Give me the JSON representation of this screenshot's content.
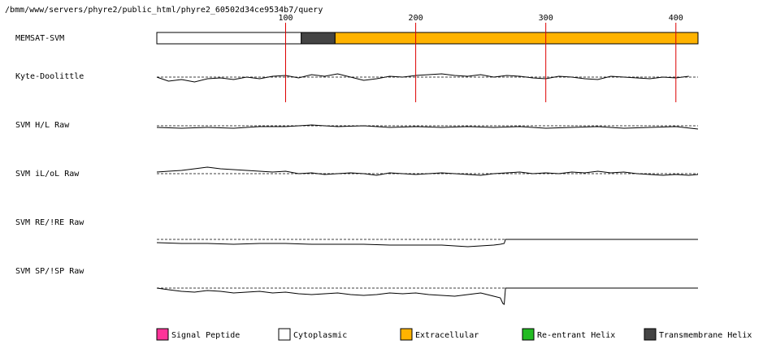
{
  "header_path": "/bmm/www/servers/phyre2/public_html/phyre2_60502d34ce9534b7/query",
  "chart_data": {
    "type": "line",
    "title": "",
    "x_ticks": [
      100,
      200,
      300,
      400
    ],
    "sequence_length": 417,
    "tracks": [
      {
        "name": "MEMSAT-SVM",
        "kind": "topology"
      },
      {
        "name": "Kyte-Doolittle",
        "kind": "profile"
      },
      {
        "name": "SVM H/L Raw",
        "kind": "profile"
      },
      {
        "name": "SVM iL/oL Raw",
        "kind": "profile"
      },
      {
        "name": "SVM RE/!RE Raw",
        "kind": "profile"
      },
      {
        "name": "SVM SP/!SP Raw",
        "kind": "profile"
      }
    ],
    "topology_segments": [
      {
        "type": "Cytoplasmic",
        "start": 1,
        "end": 112
      },
      {
        "type": "Transmembrane Helix",
        "start": 112,
        "end": 138
      },
      {
        "type": "Extracellular",
        "start": 138,
        "end": 417
      }
    ],
    "profiles": {
      "kyte_doolittle": {
        "x": [
          1,
          10,
          20,
          30,
          40,
          50,
          60,
          70,
          80,
          90,
          100,
          110,
          120,
          130,
          140,
          150,
          160,
          170,
          180,
          190,
          200,
          210,
          220,
          230,
          240,
          250,
          260,
          270,
          280,
          290,
          300,
          310,
          320,
          330,
          340,
          350,
          360,
          370,
          380,
          390,
          400,
          410
        ],
        "y": [
          0.0,
          -0.5,
          -0.3,
          -0.6,
          -0.2,
          -0.1,
          -0.3,
          0.0,
          -0.2,
          0.1,
          0.2,
          -0.1,
          0.3,
          0.1,
          0.4,
          0.0,
          -0.4,
          -0.2,
          0.1,
          0.0,
          0.2,
          0.3,
          0.4,
          0.2,
          0.1,
          0.3,
          0.0,
          0.2,
          0.1,
          -0.1,
          -0.2,
          0.1,
          0.0,
          -0.2,
          -0.3,
          0.1,
          0.0,
          -0.1,
          -0.2,
          0.0,
          -0.1,
          0.1
        ]
      },
      "svm_hl": {
        "x": [
          1,
          20,
          40,
          60,
          80,
          100,
          120,
          140,
          160,
          180,
          200,
          220,
          240,
          260,
          280,
          300,
          320,
          340,
          360,
          380,
          400,
          417
        ],
        "y": [
          -0.2,
          -0.3,
          -0.2,
          -0.3,
          -0.1,
          -0.1,
          0.1,
          -0.1,
          0.0,
          -0.2,
          -0.1,
          -0.2,
          -0.1,
          -0.2,
          -0.1,
          -0.3,
          -0.2,
          -0.1,
          -0.3,
          -0.2,
          -0.1,
          -0.4
        ]
      },
      "svm_il_ol": {
        "x": [
          1,
          10,
          20,
          30,
          40,
          50,
          60,
          70,
          80,
          90,
          100,
          110,
          120,
          130,
          140,
          150,
          160,
          170,
          180,
          190,
          200,
          210,
          220,
          230,
          240,
          250,
          260,
          270,
          280,
          290,
          300,
          310,
          320,
          330,
          340,
          350,
          360,
          370,
          380,
          390,
          400,
          410,
          417
        ],
        "y": [
          0.2,
          0.3,
          0.4,
          0.6,
          0.8,
          0.6,
          0.5,
          0.4,
          0.3,
          0.2,
          0.3,
          0.0,
          0.1,
          -0.1,
          0.0,
          0.1,
          0.0,
          -0.2,
          0.1,
          0.0,
          -0.1,
          0.0,
          0.1,
          0.0,
          -0.1,
          -0.2,
          0.0,
          0.1,
          0.2,
          0.0,
          0.1,
          0.0,
          0.2,
          0.1,
          0.3,
          0.1,
          0.2,
          0.0,
          -0.1,
          -0.2,
          -0.1,
          -0.2,
          -0.1
        ]
      },
      "svm_re": {
        "x": [
          1,
          20,
          40,
          60,
          80,
          100,
          120,
          140,
          160,
          180,
          200,
          220,
          240,
          250,
          260,
          265,
          268,
          269,
          417
        ],
        "y": [
          -0.4,
          -0.5,
          -0.5,
          -0.6,
          -0.5,
          -0.5,
          -0.6,
          -0.6,
          -0.6,
          -0.7,
          -0.7,
          -0.7,
          -0.9,
          -0.8,
          -0.7,
          -0.6,
          -0.5,
          0.0,
          0.0
        ]
      },
      "svm_sp": {
        "x": [
          1,
          10,
          20,
          30,
          40,
          50,
          60,
          70,
          80,
          90,
          100,
          110,
          120,
          130,
          140,
          150,
          160,
          170,
          180,
          190,
          200,
          210,
          220,
          230,
          240,
          250,
          255,
          260,
          265,
          267,
          268,
          269,
          417
        ],
        "y": [
          0.0,
          -0.2,
          -0.4,
          -0.5,
          -0.3,
          -0.4,
          -0.6,
          -0.5,
          -0.4,
          -0.6,
          -0.5,
          -0.7,
          -0.8,
          -0.7,
          -0.6,
          -0.8,
          -0.9,
          -0.8,
          -0.6,
          -0.7,
          -0.6,
          -0.8,
          -0.9,
          -1.0,
          -0.8,
          -0.6,
          -0.8,
          -1.0,
          -1.2,
          -1.9,
          -2.0,
          0.0,
          0.0
        ]
      }
    }
  },
  "legend": [
    {
      "label": "Signal Peptide",
      "color": "#ff3399"
    },
    {
      "label": "Cytoplasmic",
      "color": "#ffffff"
    },
    {
      "label": "Extracellular",
      "color": "#ffb300"
    },
    {
      "label": "Re-entrant Helix",
      "color": "#22bb22"
    },
    {
      "label": "Transmembrane Helix",
      "color": "#444444"
    }
  ],
  "colors": {
    "tick_line": "#dd0000",
    "trace": "#000000"
  }
}
